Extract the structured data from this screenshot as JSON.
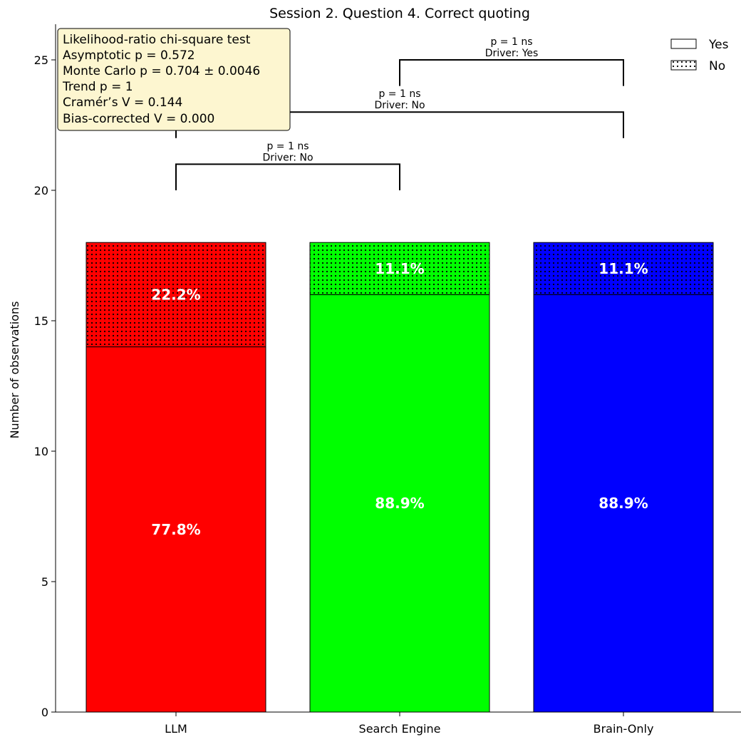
{
  "chart_data": {
    "type": "bar",
    "stacked": true,
    "title": "Session 2. Question 4. Correct quoting",
    "xlabel": "",
    "ylabel": "Number of observations",
    "ylim": [
      0,
      26.3
    ],
    "yticks": [
      0,
      5,
      10,
      15,
      20,
      25
    ],
    "categories": [
      "LLM",
      "Search Engine",
      "Brain-Only"
    ],
    "colors": [
      "#ff0000",
      "#00ff00",
      "#0000ff"
    ],
    "series": [
      {
        "name": "Yes",
        "values": [
          14,
          16,
          16
        ],
        "labels": [
          "77.8%",
          "88.9%",
          "88.9%"
        ],
        "hatch": "none"
      },
      {
        "name": "No",
        "values": [
          4,
          2,
          2
        ],
        "labels": [
          "22.2%",
          "11.1%",
          "11.1%"
        ],
        "hatch": "dots"
      }
    ],
    "legend": {
      "position": "top-right",
      "entries": [
        "Yes",
        "No"
      ]
    },
    "grid": false,
    "stats_box": {
      "position": "top-left",
      "lines": [
        "Likelihood-ratio chi-square test",
        "Asymptotic p = 0.572",
        "Monte Carlo p = 0.704 ± 0.0046",
        "Trend p = 1",
        "Cramér’s V = 0.144",
        "Bias-corrected V = 0.000"
      ]
    },
    "comparisons": [
      {
        "from": 0,
        "to": 1,
        "y": 21,
        "y_start": 20,
        "y_end": 20,
        "line1": "p = 1 ns",
        "line2": "Driver: No"
      },
      {
        "from": 0,
        "to": 2,
        "y": 23,
        "y_start": 22,
        "y_end": 22,
        "line1": "p = 1 ns",
        "line2": "Driver: No"
      },
      {
        "from": 1,
        "to": 2,
        "y": 25,
        "y_start": 24,
        "y_end": 24,
        "line1": "p = 1 ns",
        "line2": "Driver: Yes"
      }
    ]
  }
}
